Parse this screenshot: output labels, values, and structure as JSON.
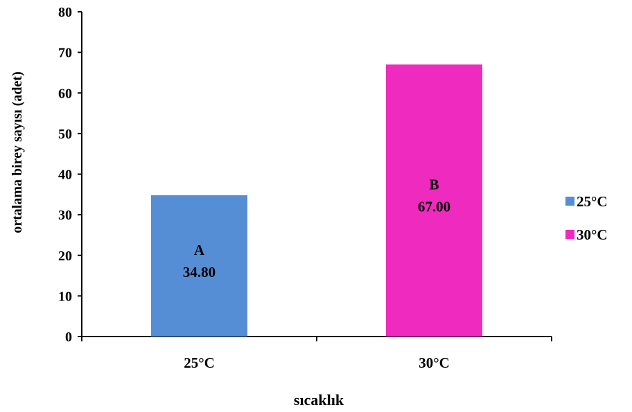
{
  "chart_data": {
    "type": "bar",
    "categories": [
      "25°C",
      "30°C"
    ],
    "series": [
      {
        "name": "25°C",
        "color": "#558ED5",
        "values": [
          34.8,
          null
        ]
      },
      {
        "name": "30°C",
        "color": "#EE2BBE",
        "values": [
          null,
          67.0
        ]
      }
    ],
    "bar_labels": [
      {
        "letter": "A",
        "value": "34.80"
      },
      {
        "letter": "B",
        "value": "67.00"
      }
    ],
    "xlabel": "sıcaklık",
    "ylabel": "ortalama birey sayısı (adet)",
    "ylim": [
      0,
      80
    ],
    "yticks": [
      0,
      10,
      20,
      30,
      40,
      50,
      60,
      70,
      80
    ],
    "grid": false,
    "legend": "right",
    "legend_entries": [
      {
        "label": "25°C",
        "color": "#558ED5"
      },
      {
        "label": "30°C",
        "color": "#EE2BBE"
      }
    ]
  }
}
